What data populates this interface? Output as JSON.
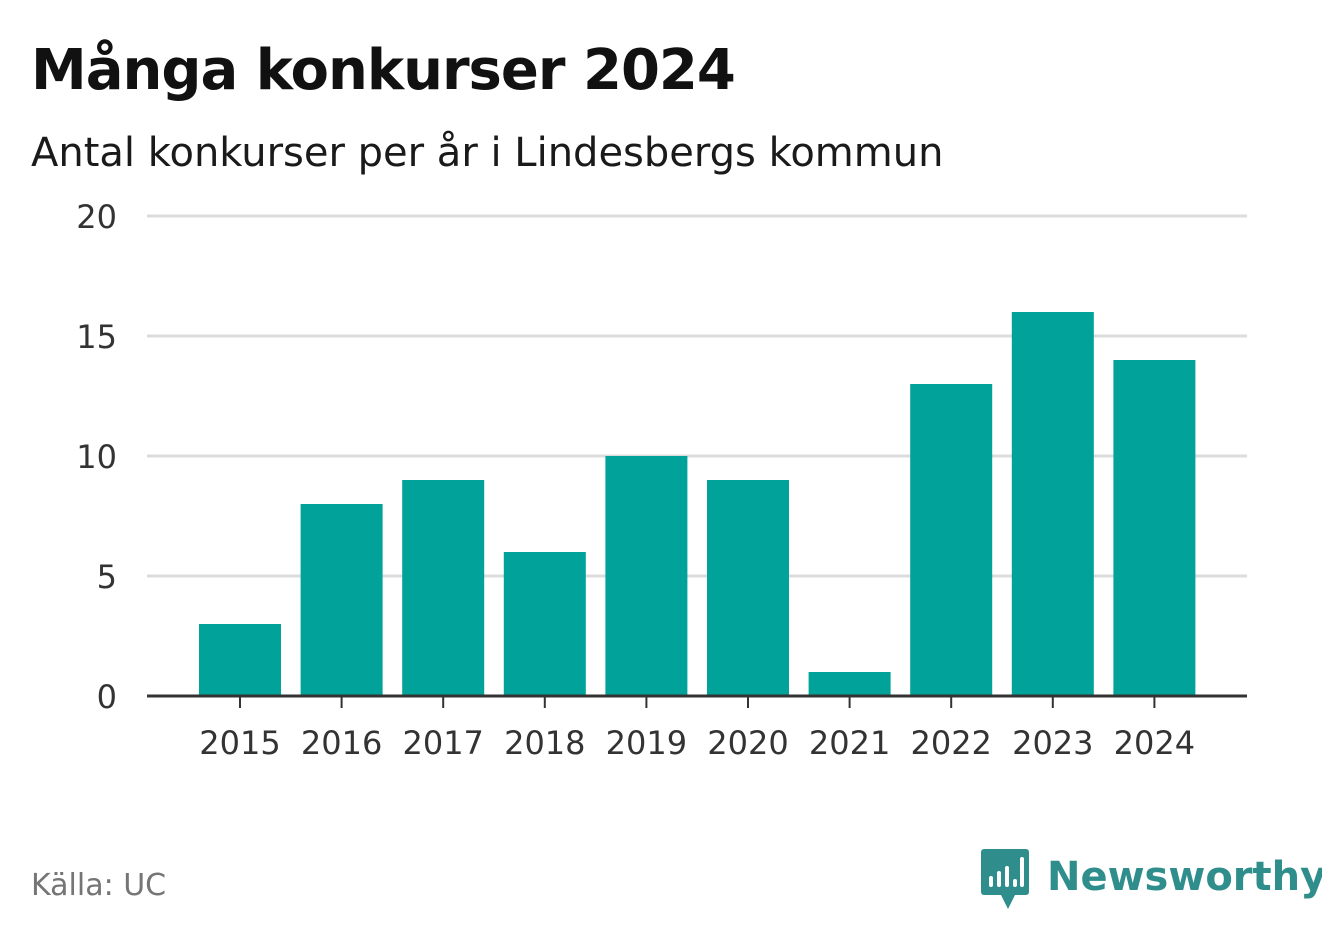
{
  "chart_data": {
    "type": "bar",
    "title": "Många konkurser 2024",
    "subtitle": "Antal konkurser per år i Lindesbergs kommun",
    "xlabel": "",
    "ylabel": "",
    "categories": [
      "2015",
      "2016",
      "2017",
      "2018",
      "2019",
      "2020",
      "2021",
      "2022",
      "2023",
      "2024"
    ],
    "values": [
      3,
      8,
      9,
      6,
      10,
      9,
      1,
      13,
      16,
      14
    ],
    "ylim": [
      0,
      20
    ],
    "yticks": [
      0,
      5,
      10,
      15,
      20
    ],
    "grid": true,
    "bar_color": "#00a29a",
    "grid_color": "#dcdcdc",
    "axis_color": "#333333"
  },
  "footer": {
    "source": "Källa: UC",
    "brand": "Newsworthy",
    "brand_icon": "newsworthy-logo-icon",
    "brand_color": "#2f8e8b"
  }
}
